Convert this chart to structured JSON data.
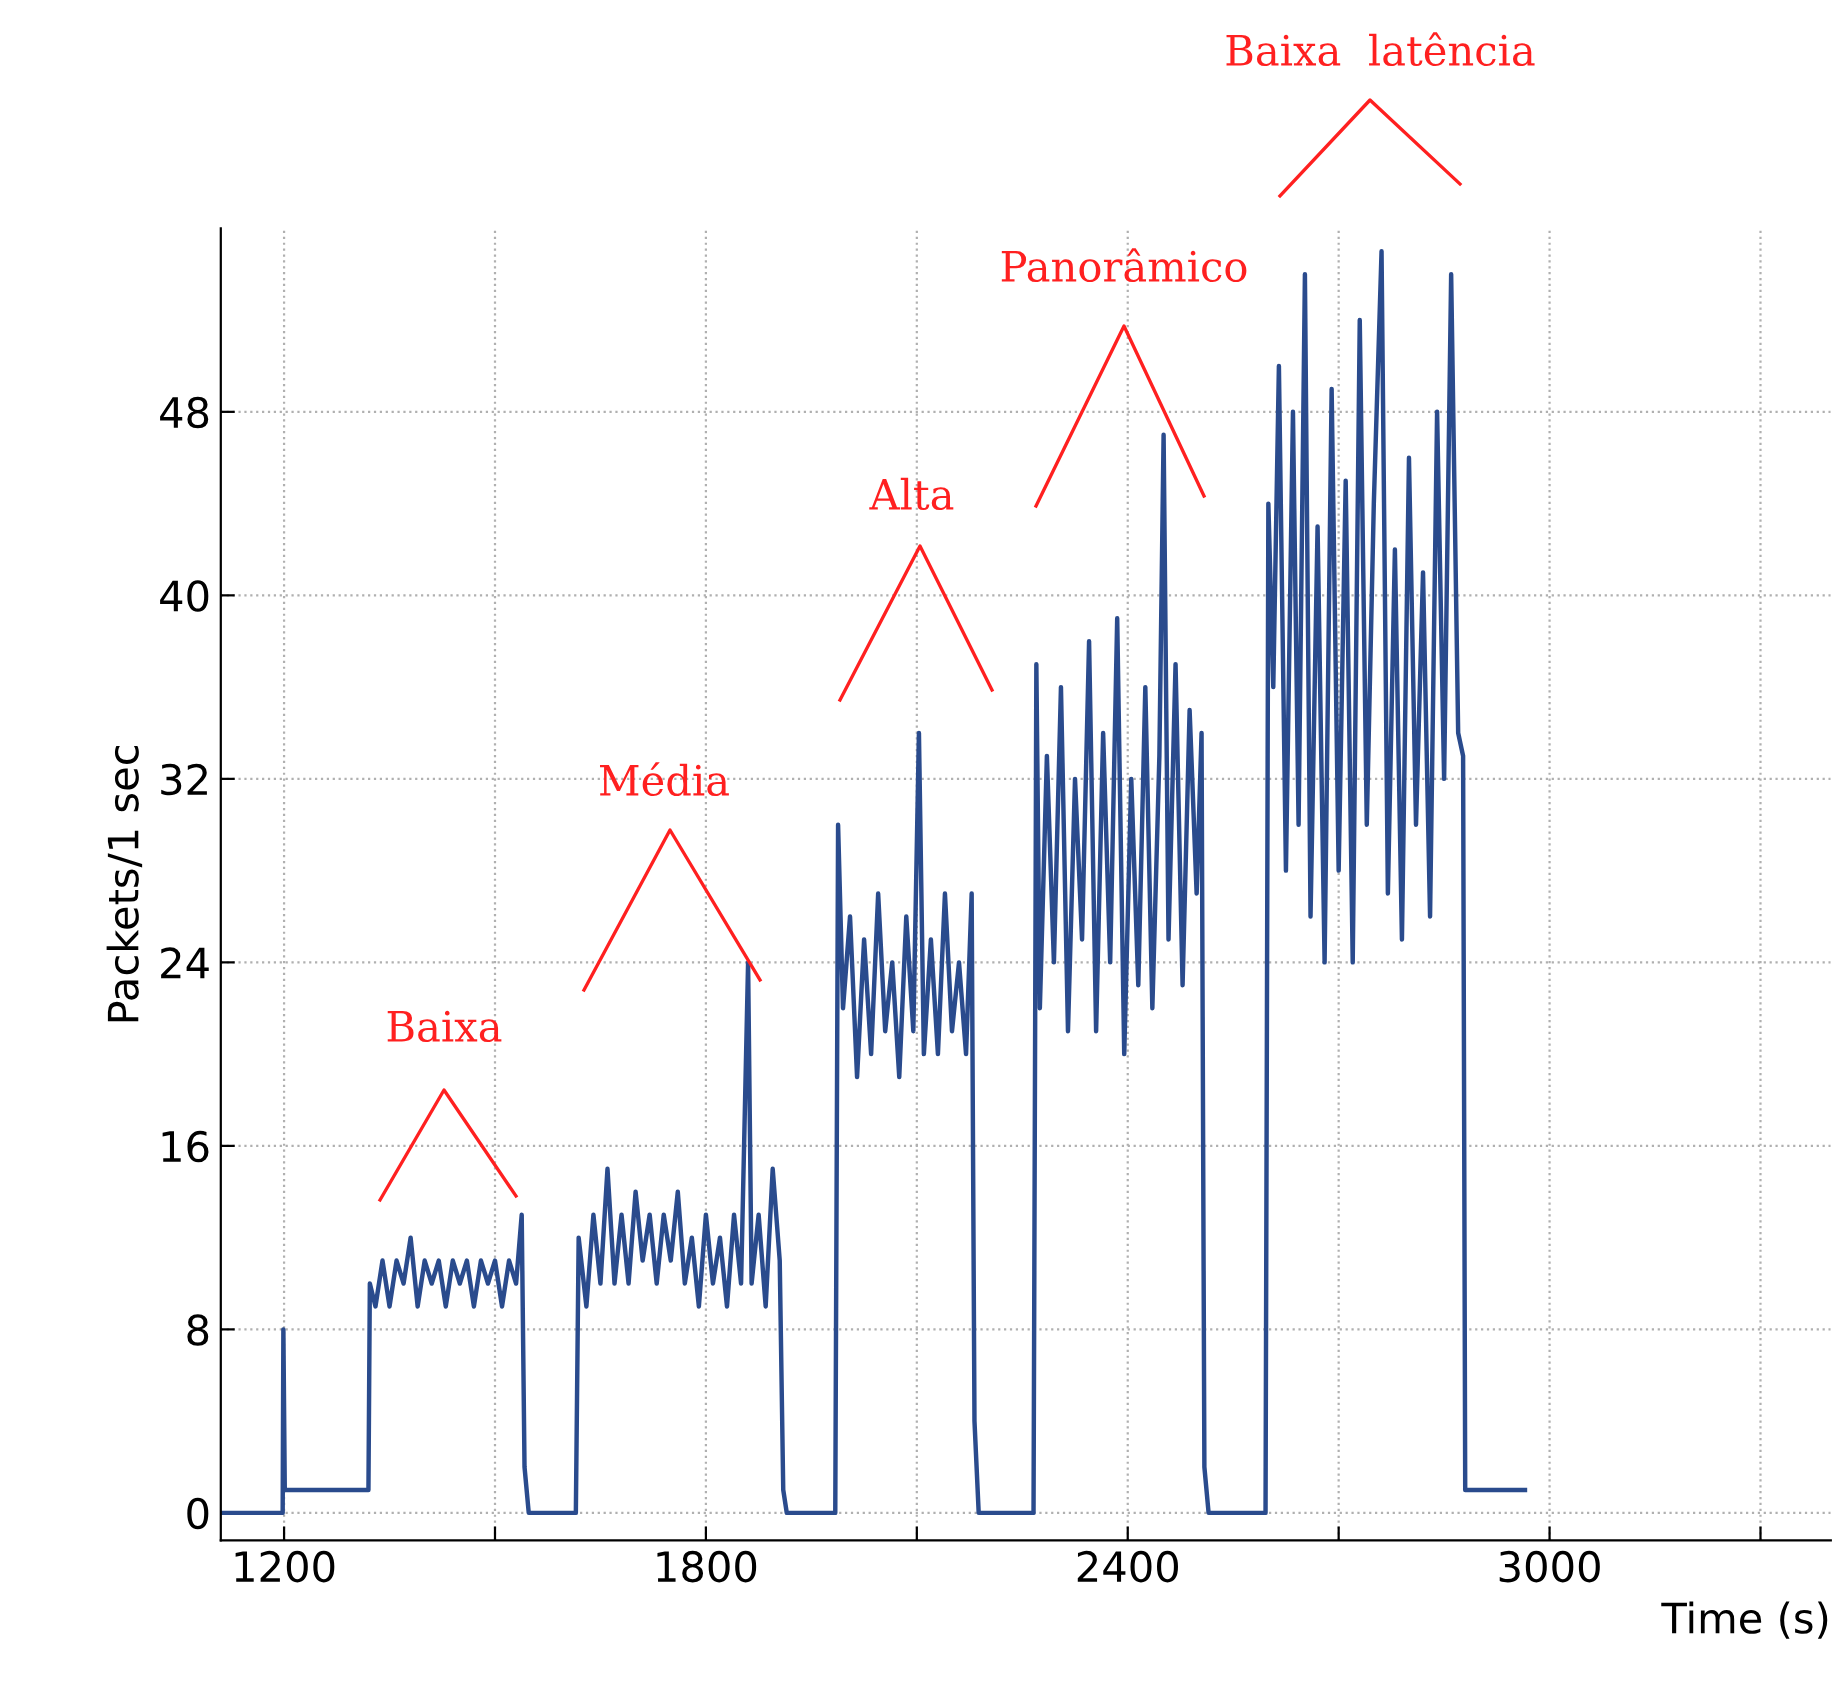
{
  "chart_data": {
    "type": "line",
    "xlabel": "Time (s)",
    "ylabel": "Packets/1 sec",
    "xlim": [
      1110,
      3400
    ],
    "ylim": [
      -1.2,
      56
    ],
    "xticks": [
      1200,
      {
        "value": 1500,
        "label": null
      },
      1800,
      {
        "value": 2100,
        "label": null
      },
      2400,
      {
        "value": 2700,
        "label": null
      },
      3000,
      {
        "value": 3300,
        "label": null
      }
    ],
    "yticks": [
      0,
      8,
      16,
      24,
      32,
      40,
      48
    ],
    "grid": true,
    "line_style": "solid",
    "marker": "none",
    "annotations": [
      "Baixa",
      "Média",
      "Alta",
      "Panorâmico",
      "Baixa  latência"
    ],
    "series": [
      {
        "color": "#2a4b8d",
        "x": [
          1110,
          1198,
          1199,
          1201,
          1320,
          1322,
          1330,
          1340,
          1350,
          1360,
          1370,
          1380,
          1390,
          1400,
          1410,
          1420,
          1430,
          1440,
          1450,
          1460,
          1470,
          1480,
          1490,
          1500,
          1510,
          1520,
          1530,
          1538,
          1542,
          1548,
          1615,
          1619,
          1630,
          1640,
          1650,
          1660,
          1670,
          1680,
          1690,
          1700,
          1710,
          1720,
          1730,
          1740,
          1750,
          1760,
          1770,
          1780,
          1790,
          1800,
          1810,
          1820,
          1830,
          1840,
          1850,
          1860,
          1865,
          1875,
          1885,
          1895,
          1905,
          1910,
          1915,
          1984,
          1988,
          1995,
          2005,
          2015,
          2025,
          2035,
          2045,
          2055,
          2065,
          2075,
          2085,
          2095,
          2103,
          2110,
          2120,
          2130,
          2140,
          2150,
          2160,
          2170,
          2178,
          2182,
          2188,
          2266,
          2270,
          2275,
          2285,
          2295,
          2305,
          2315,
          2325,
          2335,
          2345,
          2355,
          2365,
          2375,
          2385,
          2395,
          2405,
          2415,
          2425,
          2435,
          2445,
          2451,
          2458,
          2468,
          2478,
          2488,
          2498,
          2505,
          2509,
          2515,
          2596,
          2600,
          2607,
          2615,
          2625,
          2635,
          2643,
          2652,
          2660,
          2670,
          2680,
          2690,
          2700,
          2710,
          2720,
          2730,
          2740,
          2750,
          2761,
          2770,
          2780,
          2790,
          2800,
          2810,
          2820,
          2830,
          2840,
          2850,
          2860,
          2870,
          2877,
          2880,
          2965
        ],
        "values": [
          0,
          0,
          8,
          1,
          1,
          10,
          9,
          11,
          9,
          11,
          10,
          12,
          9,
          11,
          10,
          11,
          9,
          11,
          10,
          11,
          9,
          11,
          10,
          11,
          9,
          11,
          10,
          13,
          2,
          0,
          0,
          12,
          9,
          13,
          10,
          15,
          10,
          13,
          10,
          14,
          11,
          13,
          10,
          13,
          11,
          14,
          10,
          12,
          9,
          13,
          10,
          12,
          9,
          13,
          10,
          24,
          10,
          13,
          9,
          15,
          11,
          1,
          0,
          0,
          30,
          22,
          26,
          19,
          25,
          20,
          27,
          21,
          24,
          19,
          26,
          21,
          34,
          20,
          25,
          20,
          27,
          21,
          24,
          20,
          27,
          4,
          0,
          0,
          37,
          22,
          33,
          24,
          36,
          21,
          32,
          25,
          38,
          21,
          34,
          24,
          39,
          20,
          32,
          23,
          36,
          22,
          33,
          47,
          25,
          37,
          23,
          35,
          27,
          34,
          2,
          0,
          0,
          44,
          36,
          50,
          28,
          48,
          30,
          54,
          26,
          43,
          24,
          49,
          28,
          45,
          24,
          52,
          30,
          44,
          55,
          27,
          42,
          25,
          46,
          30,
          41,
          26,
          48,
          32,
          54,
          34,
          33,
          1,
          1
        ]
      }
    ]
  }
}
